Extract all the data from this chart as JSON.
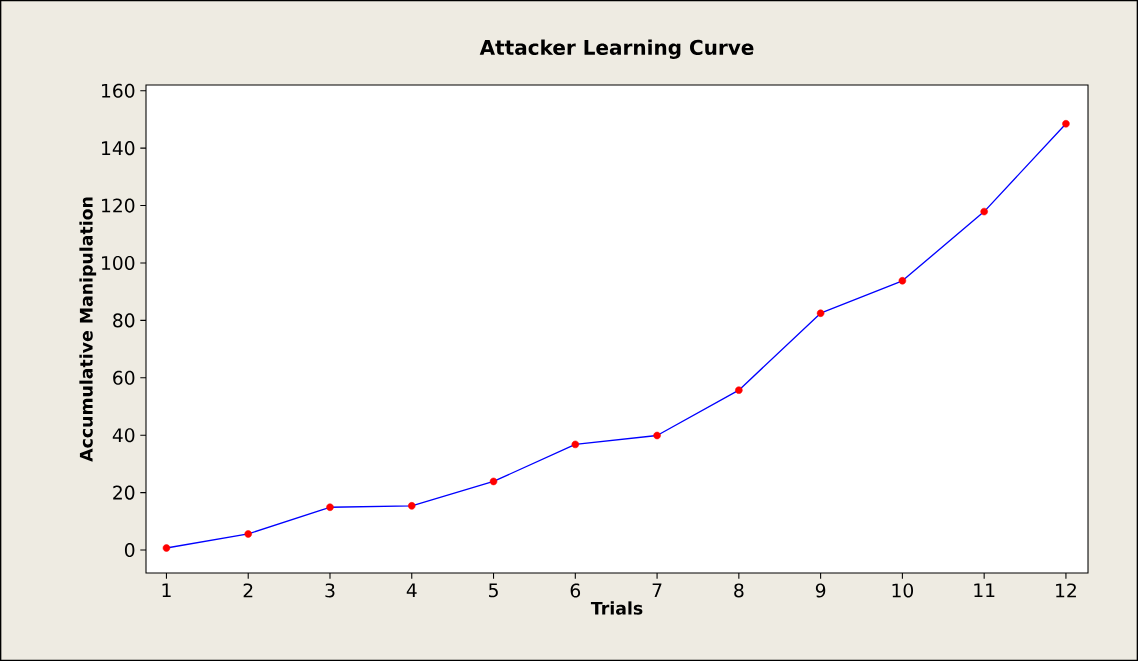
{
  "chart_data": {
    "type": "line",
    "title": "Attacker Learning Curve",
    "xlabel": "Trials",
    "ylabel": "Accumulative Manipulation",
    "x": [
      1,
      2,
      3,
      4,
      5,
      6,
      7,
      8,
      9,
      10,
      11,
      12
    ],
    "series": [
      {
        "color": "#0000ff",
        "colors": [
          "#ff0000",
          "#ff0000",
          "#ff0000",
          "#ff0000",
          "#ff0000",
          "#ff0000",
          "#ff0000",
          "#ff0000",
          "#ff0000",
          "#ff0000",
          "#ff0000",
          "#ff0000"
        ],
        "values": [
          0.7,
          5.6,
          14.9,
          15.4,
          23.9,
          36.8,
          39.9,
          55.7,
          82.5,
          93.8,
          117.9,
          148.5
        ]
      }
    ],
    "xlim": [
      0.75,
      12.27
    ],
    "ylim": [
      -8,
      162
    ],
    "xticks": [
      1,
      2,
      3,
      4,
      5,
      6,
      7,
      8,
      9,
      10,
      11,
      12
    ],
    "yticks": [
      0,
      20,
      40,
      60,
      80,
      100,
      120,
      140,
      160
    ],
    "marker": "circle",
    "line_style": "solid"
  }
}
